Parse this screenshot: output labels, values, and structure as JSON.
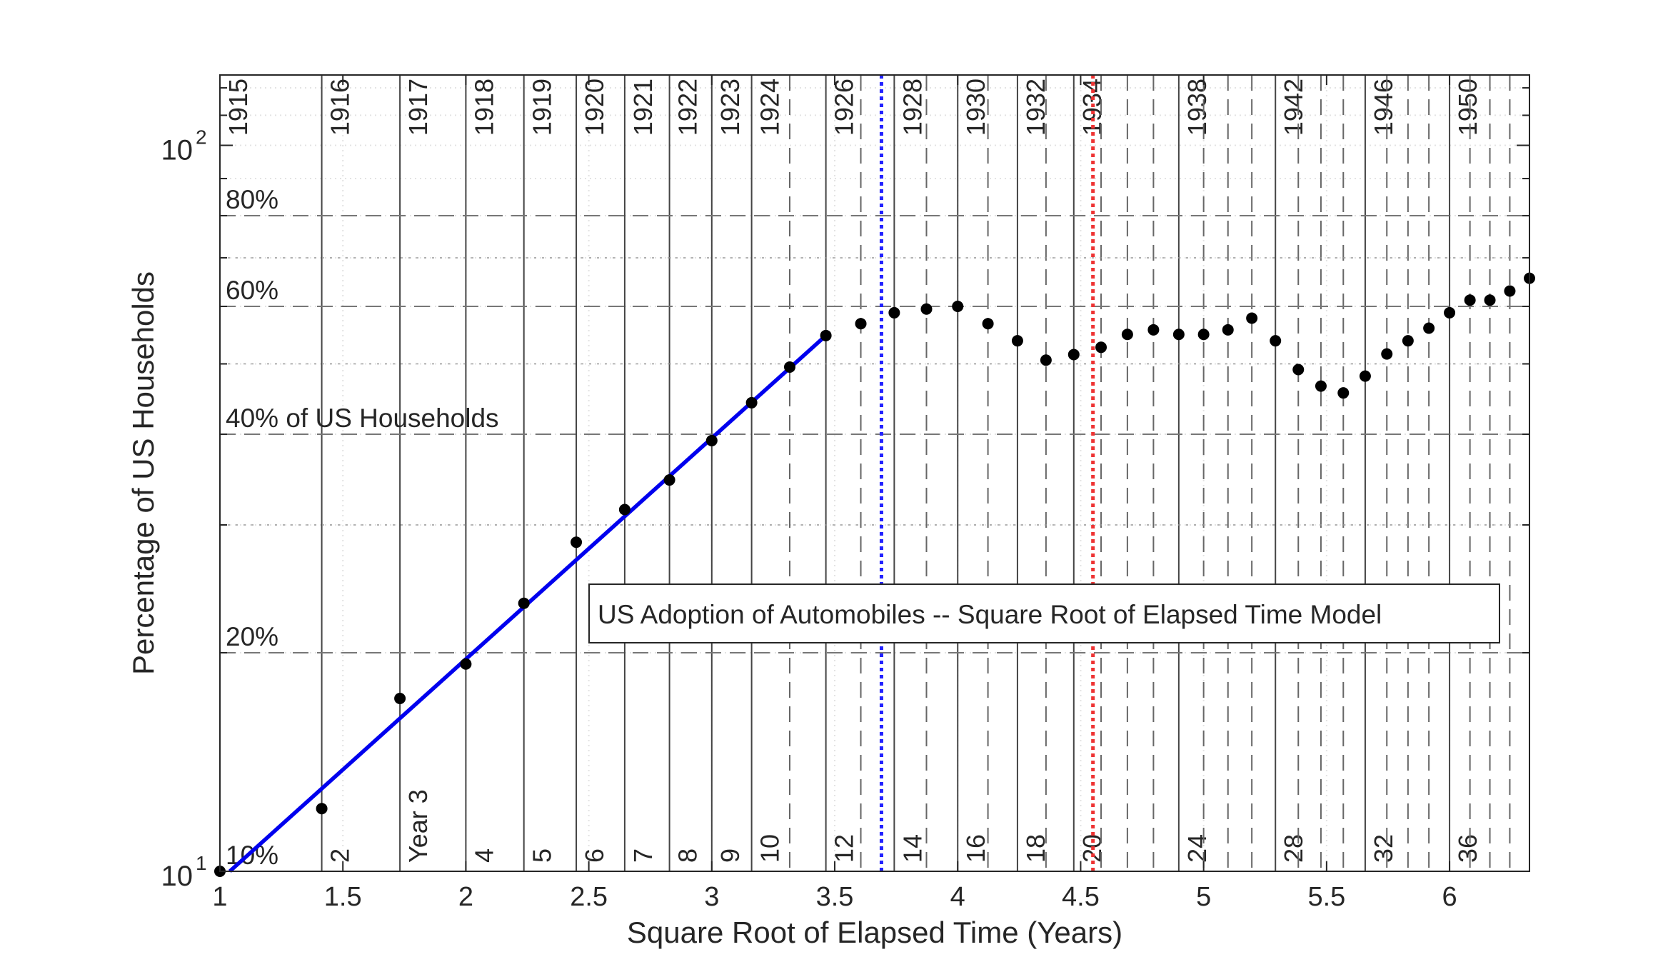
{
  "chart_data": {
    "type": "scatter",
    "title": "",
    "xlabel": "Square Root of Elapsed Time (Years)",
    "ylabel": "Percentage of US Households",
    "xlim": [
      1,
      6.325
    ],
    "ylim": [
      10,
      125
    ],
    "y_scale": "log",
    "grid": true,
    "x_ticks": [
      {
        "value": 1,
        "label": "1"
      },
      {
        "value": 1.5,
        "label": "1.5"
      },
      {
        "value": 2,
        "label": "2"
      },
      {
        "value": 2.5,
        "label": "2.5"
      },
      {
        "value": 3,
        "label": "3"
      },
      {
        "value": 3.5,
        "label": "3.5"
      },
      {
        "value": 4,
        "label": "4"
      },
      {
        "value": 4.5,
        "label": "4.5"
      },
      {
        "value": 5,
        "label": "5"
      },
      {
        "value": 5.5,
        "label": "5.5"
      },
      {
        "value": 6,
        "label": "6"
      }
    ],
    "y_ticks": [
      {
        "value": 10,
        "base": "10",
        "exp": "1"
      },
      {
        "value": 100,
        "base": "10",
        "exp": "2"
      }
    ],
    "percent_lines": [
      {
        "value": 10,
        "label": "10%"
      },
      {
        "value": 20,
        "label": "20%"
      },
      {
        "value": 40,
        "label": "40% of US Households"
      },
      {
        "value": 60,
        "label": "60%"
      },
      {
        "value": 80,
        "label": "80%"
      }
    ],
    "minor_percent_lines": [
      30,
      50,
      70
    ],
    "year_lines": [
      {
        "x": 1,
        "year": "1915",
        "elapsed": ""
      },
      {
        "x": 1.414,
        "year": "1916",
        "elapsed": "2"
      },
      {
        "x": 1.732,
        "year": "1917",
        "elapsed": "Year 3"
      },
      {
        "x": 2,
        "year": "1918",
        "elapsed": "4"
      },
      {
        "x": 2.236,
        "year": "1919",
        "elapsed": "5"
      },
      {
        "x": 2.449,
        "year": "1920",
        "elapsed": "6"
      },
      {
        "x": 2.646,
        "year": "1921",
        "elapsed": "7"
      },
      {
        "x": 2.828,
        "year": "1922",
        "elapsed": "8"
      },
      {
        "x": 3,
        "year": "1923",
        "elapsed": "9"
      },
      {
        "x": 3.162,
        "year": "1924",
        "elapsed": "10"
      },
      {
        "x": 3.317,
        "year": "",
        "elapsed": ""
      },
      {
        "x": 3.464,
        "year": "1926",
        "elapsed": "12"
      },
      {
        "x": 3.606,
        "year": "",
        "elapsed": ""
      },
      {
        "x": 3.742,
        "year": "1928",
        "elapsed": "14"
      },
      {
        "x": 3.873,
        "year": "",
        "elapsed": ""
      },
      {
        "x": 4,
        "year": "1930",
        "elapsed": "16"
      },
      {
        "x": 4.123,
        "year": "",
        "elapsed": ""
      },
      {
        "x": 4.243,
        "year": "1932",
        "elapsed": "18"
      },
      {
        "x": 4.359,
        "year": "",
        "elapsed": ""
      },
      {
        "x": 4.472,
        "year": "1934",
        "elapsed": "20"
      },
      {
        "x": 4.583,
        "year": "",
        "elapsed": ""
      },
      {
        "x": 4.69,
        "year": "",
        "elapsed": ""
      },
      {
        "x": 4.796,
        "year": "",
        "elapsed": ""
      },
      {
        "x": 4.899,
        "year": "1938",
        "elapsed": "24"
      },
      {
        "x": 5,
        "year": "",
        "elapsed": ""
      },
      {
        "x": 5.099,
        "year": "",
        "elapsed": ""
      },
      {
        "x": 5.196,
        "year": "",
        "elapsed": ""
      },
      {
        "x": 5.292,
        "year": "1942",
        "elapsed": "28"
      },
      {
        "x": 5.385,
        "year": "",
        "elapsed": ""
      },
      {
        "x": 5.477,
        "year": "",
        "elapsed": ""
      },
      {
        "x": 5.568,
        "year": "",
        "elapsed": ""
      },
      {
        "x": 5.657,
        "year": "1946",
        "elapsed": "32"
      },
      {
        "x": 5.745,
        "year": "",
        "elapsed": ""
      },
      {
        "x": 5.831,
        "year": "",
        "elapsed": ""
      },
      {
        "x": 5.916,
        "year": "",
        "elapsed": ""
      },
      {
        "x": 6,
        "year": "1950",
        "elapsed": "36"
      },
      {
        "x": 6.083,
        "year": "",
        "elapsed": ""
      },
      {
        "x": 6.164,
        "year": "",
        "elapsed": ""
      },
      {
        "x": 6.245,
        "year": "",
        "elapsed": ""
      }
    ],
    "points": [
      {
        "x": 1,
        "y": 10
      },
      {
        "x": 1.414,
        "y": 12.2
      },
      {
        "x": 1.732,
        "y": 17.3
      },
      {
        "x": 2,
        "y": 19.3
      },
      {
        "x": 2.236,
        "y": 23.4
      },
      {
        "x": 2.449,
        "y": 28.4
      },
      {
        "x": 2.646,
        "y": 31.5
      },
      {
        "x": 2.828,
        "y": 34.6
      },
      {
        "x": 3,
        "y": 39.2
      },
      {
        "x": 3.162,
        "y": 44.2
      },
      {
        "x": 3.317,
        "y": 49.5
      },
      {
        "x": 3.464,
        "y": 54.7
      },
      {
        "x": 3.606,
        "y": 56.8
      },
      {
        "x": 3.742,
        "y": 58.8
      },
      {
        "x": 3.873,
        "y": 59.5
      },
      {
        "x": 4,
        "y": 60.0
      },
      {
        "x": 4.123,
        "y": 56.8
      },
      {
        "x": 4.243,
        "y": 53.8
      },
      {
        "x": 4.359,
        "y": 50.6
      },
      {
        "x": 4.472,
        "y": 51.5
      },
      {
        "x": 4.583,
        "y": 52.7
      },
      {
        "x": 4.69,
        "y": 54.9
      },
      {
        "x": 4.796,
        "y": 55.7
      },
      {
        "x": 4.899,
        "y": 54.9
      },
      {
        "x": 5,
        "y": 54.9
      },
      {
        "x": 5.099,
        "y": 55.7
      },
      {
        "x": 5.196,
        "y": 57.8
      },
      {
        "x": 5.292,
        "y": 53.8
      },
      {
        "x": 5.385,
        "y": 49.1
      },
      {
        "x": 5.477,
        "y": 46.6
      },
      {
        "x": 5.568,
        "y": 45.6
      },
      {
        "x": 5.657,
        "y": 48.1
      },
      {
        "x": 5.745,
        "y": 51.6
      },
      {
        "x": 5.831,
        "y": 53.8
      },
      {
        "x": 5.916,
        "y": 56.0
      },
      {
        "x": 6,
        "y": 58.8
      },
      {
        "x": 6.083,
        "y": 61.2
      },
      {
        "x": 6.164,
        "y": 61.2
      },
      {
        "x": 6.245,
        "y": 63.0
      },
      {
        "x": 6.325,
        "y": 65.6
      }
    ],
    "fit_line": {
      "color": "#0000ee",
      "from": {
        "x": 1.04,
        "y": 10
      },
      "to": {
        "x": 3.464,
        "y": 54.7
      }
    },
    "vlines": [
      {
        "x": 3.69,
        "color": "#2222ff",
        "style": "dotted"
      },
      {
        "x": 4.55,
        "color": "#ee3333",
        "style": "dotted"
      }
    ],
    "legend": {
      "text": "US Adoption of Automobiles -- Square Root of Elapsed Time Model",
      "placement": "center-right"
    }
  }
}
